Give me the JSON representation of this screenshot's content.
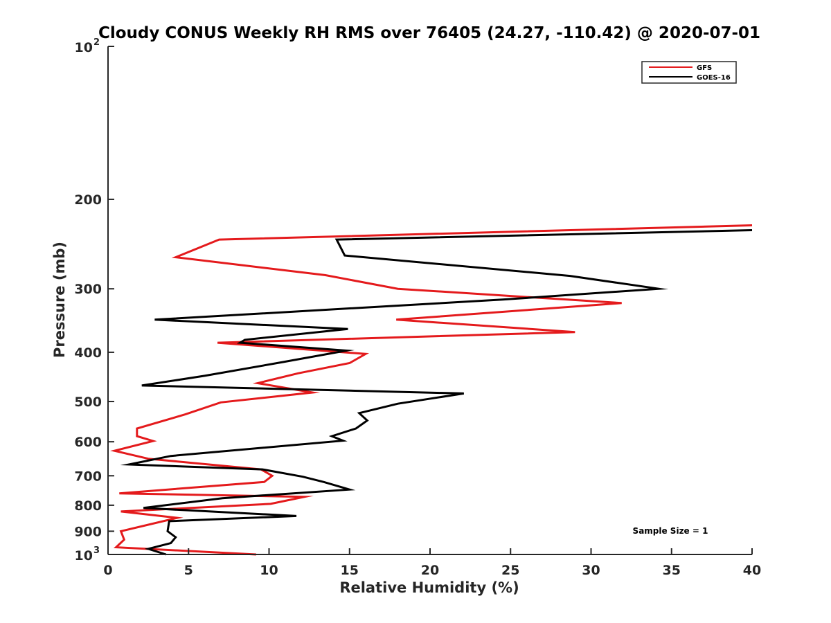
{
  "chart_data": {
    "type": "line",
    "title": "Cloudy CONUS Weekly RH RMS over 76405 (24.27, -110.42) @ 2020-07-01",
    "xlabel": "Relative Humidity (%)",
    "ylabel": "Pressure (mb)",
    "xlim": [
      0,
      40
    ],
    "ylim": [
      100,
      1000
    ],
    "yscale": "log",
    "y_reversed": false,
    "x_ticks": [
      0,
      5,
      10,
      15,
      20,
      25,
      30,
      35,
      40
    ],
    "y_ticks": [
      {
        "value": 100,
        "label": "10",
        "exp": "2"
      },
      {
        "value": 200,
        "label": "200"
      },
      {
        "value": 300,
        "label": "300"
      },
      {
        "value": 400,
        "label": "400"
      },
      {
        "value": 500,
        "label": "500"
      },
      {
        "value": 600,
        "label": "600"
      },
      {
        "value": 700,
        "label": "700"
      },
      {
        "value": 800,
        "label": "800"
      },
      {
        "value": 900,
        "label": "900"
      },
      {
        "value": 1000,
        "label": "10",
        "exp": "3"
      }
    ],
    "grid": false,
    "legend_position": "top-right",
    "annotation": "Sample Size = 1",
    "series": [
      {
        "name": "GFS",
        "color": "#e41a1c",
        "points": [
          [
            40.0,
            225
          ],
          [
            6.9,
            240
          ],
          [
            4.2,
            260
          ],
          [
            13.5,
            282
          ],
          [
            18.0,
            300
          ],
          [
            31.9,
            320
          ],
          [
            17.9,
            345
          ],
          [
            29.0,
            365
          ],
          [
            6.8,
            383
          ],
          [
            16.0,
            403
          ],
          [
            15.0,
            420
          ],
          [
            11.8,
            440
          ],
          [
            9.3,
            460
          ],
          [
            12.7,
            480
          ],
          [
            7.0,
            502
          ],
          [
            4.8,
            530
          ],
          [
            1.8,
            565
          ],
          [
            1.8,
            585
          ],
          [
            2.8,
            598
          ],
          [
            0.4,
            625
          ],
          [
            2.5,
            648
          ],
          [
            9.5,
            680
          ],
          [
            10.2,
            700
          ],
          [
            9.7,
            720
          ],
          [
            0.7,
            758
          ],
          [
            12.2,
            770
          ],
          [
            10.1,
            795
          ],
          [
            0.8,
            823
          ],
          [
            4.3,
            847
          ],
          [
            0.8,
            900
          ],
          [
            1.0,
            935
          ],
          [
            0.5,
            968
          ],
          [
            9.2,
            1000
          ]
        ]
      },
      {
        "name": "GOES-16",
        "color": "#000000",
        "points": [
          [
            40.0,
            230
          ],
          [
            14.2,
            240
          ],
          [
            14.7,
            258
          ],
          [
            28.7,
            283
          ],
          [
            34.2,
            300
          ],
          [
            24.5,
            315
          ],
          [
            2.9,
            345
          ],
          [
            14.9,
            360
          ],
          [
            8.5,
            378
          ],
          [
            8.2,
            383
          ],
          [
            14.8,
            397
          ],
          [
            10.9,
            418
          ],
          [
            6.0,
            445
          ],
          [
            2.1,
            465
          ],
          [
            22.1,
            482
          ],
          [
            18.0,
            505
          ],
          [
            15.6,
            527
          ],
          [
            16.1,
            545
          ],
          [
            15.4,
            565
          ],
          [
            13.9,
            585
          ],
          [
            14.6,
            597
          ],
          [
            3.9,
            640
          ],
          [
            1.3,
            665
          ],
          [
            9.6,
            680
          ],
          [
            12.1,
            703
          ],
          [
            13.4,
            720
          ],
          [
            15.0,
            745
          ],
          [
            7.1,
            775
          ],
          [
            2.2,
            810
          ],
          [
            11.7,
            840
          ],
          [
            3.8,
            860
          ],
          [
            3.7,
            900
          ],
          [
            4.2,
            925
          ],
          [
            3.9,
            950
          ],
          [
            2.5,
            975
          ],
          [
            3.6,
            1000
          ]
        ]
      }
    ]
  }
}
